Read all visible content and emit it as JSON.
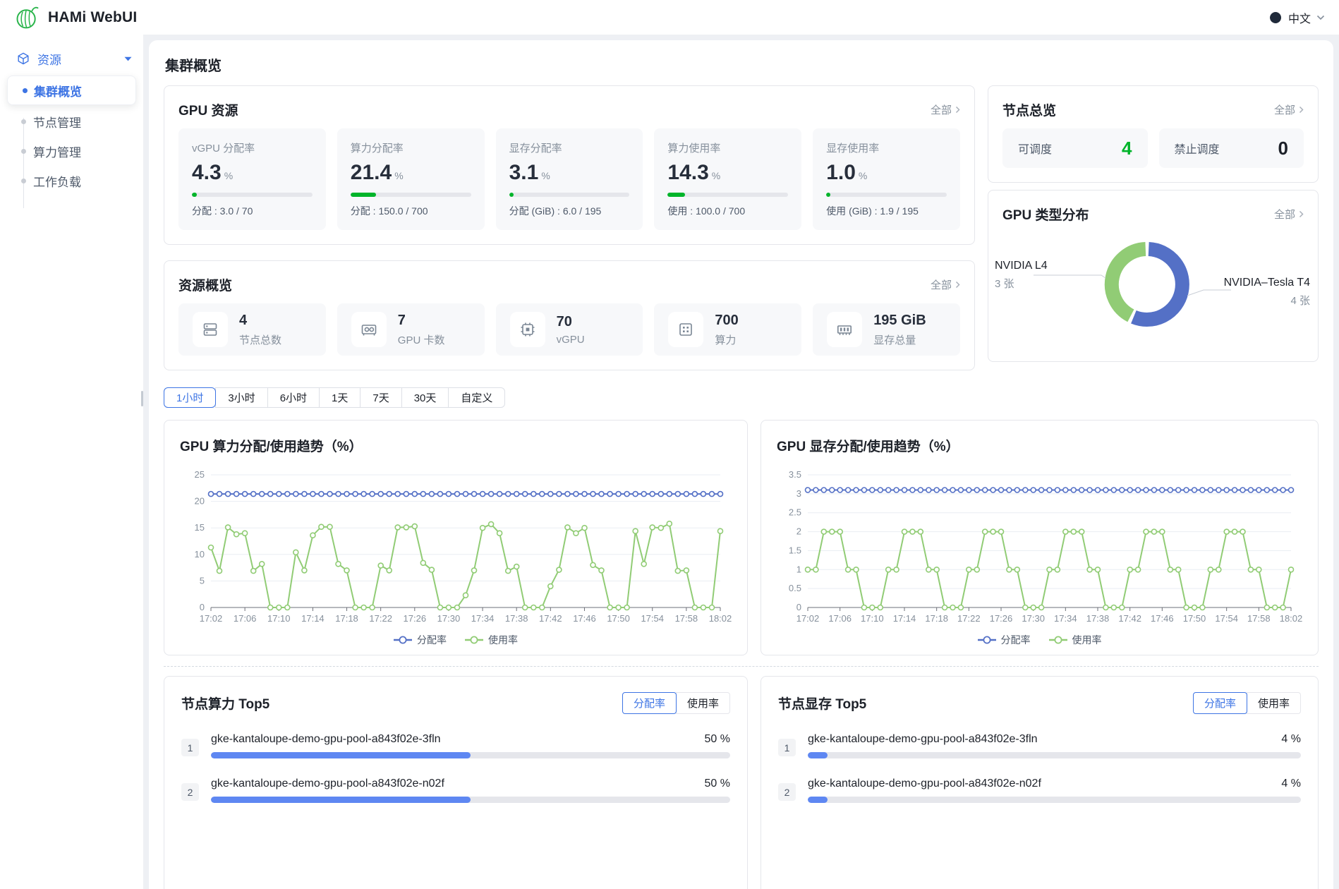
{
  "header": {
    "app_title": "HAMi WebUI",
    "language": "中文"
  },
  "sidebar": {
    "section_label": "资源",
    "items": [
      {
        "label": "集群概览",
        "active": true
      },
      {
        "label": "节点管理",
        "active": false
      },
      {
        "label": "算力管理",
        "active": false
      },
      {
        "label": "工作负载",
        "active": false
      }
    ]
  },
  "page": {
    "title": "集群概览"
  },
  "gpu_resources": {
    "title": "GPU 资源",
    "view_all": "全部",
    "metrics": [
      {
        "label": "vGPU 分配率",
        "value": "4.3",
        "unit": "%",
        "percent": 4.3,
        "caption": "分配 : 3.0 / 70"
      },
      {
        "label": "算力分配率",
        "value": "21.4",
        "unit": "%",
        "percent": 21.4,
        "caption": "分配 : 150.0 / 700"
      },
      {
        "label": "显存分配率",
        "value": "3.1",
        "unit": "%",
        "percent": 3.1,
        "caption": "分配 (GiB) : 6.0 / 195"
      },
      {
        "label": "算力使用率",
        "value": "14.3",
        "unit": "%",
        "percent": 14.3,
        "caption": "使用 : 100.0 / 700"
      },
      {
        "label": "显存使用率",
        "value": "1.0",
        "unit": "%",
        "percent": 1.0,
        "caption": "使用 (GiB) : 1.9 / 195"
      }
    ]
  },
  "node_overview": {
    "title": "节点总览",
    "view_all": "全部",
    "stats": [
      {
        "label": "可调度",
        "value": "4",
        "status": "green"
      },
      {
        "label": "禁止调度",
        "value": "0",
        "status": "dark"
      }
    ]
  },
  "gpu_type_distribution": {
    "title": "GPU 类型分布",
    "view_all": "全部"
  },
  "resource_overview": {
    "title": "资源概览",
    "view_all": "全部",
    "items": [
      {
        "value": "4",
        "label": "节点总数"
      },
      {
        "value": "7",
        "label": "GPU 卡数"
      },
      {
        "value": "70",
        "label": "vGPU"
      },
      {
        "value": "700",
        "label": "算力"
      },
      {
        "value": "195 GiB",
        "label": "显存总量"
      }
    ]
  },
  "time_range": {
    "options": [
      "1小时",
      "3小时",
      "6小时",
      "1天",
      "7天",
      "30天",
      "自定义"
    ],
    "active": "1小时"
  },
  "top5": {
    "compute": {
      "title": "节点算力 Top5",
      "toggle": [
        "分配率",
        "使用率"
      ],
      "active_toggle": "分配率",
      "rows": [
        {
          "rank": "1",
          "name": "gke-kantaloupe-demo-gpu-pool-a843f02e-3fln",
          "value": "50 %",
          "percent": 50
        },
        {
          "rank": "2",
          "name": "gke-kantaloupe-demo-gpu-pool-a843f02e-n02f",
          "value": "50 %",
          "percent": 50
        }
      ]
    },
    "memory": {
      "title": "节点显存 Top5",
      "toggle": [
        "分配率",
        "使用率"
      ],
      "active_toggle": "分配率",
      "rows": [
        {
          "rank": "1",
          "name": "gke-kantaloupe-demo-gpu-pool-a843f02e-3fln",
          "value": "4 %",
          "percent": 4
        },
        {
          "rank": "2",
          "name": "gke-kantaloupe-demo-gpu-pool-a843f02e-n02f",
          "value": "4 %",
          "percent": 4
        }
      ]
    }
  },
  "colors": {
    "primary_blue": "#3d74e4",
    "success_green": "#00b42a",
    "line_blue": "#5470c6",
    "line_green": "#91cc75",
    "top5_bar_blue": "#5e87f2"
  },
  "chart_data": [
    {
      "type": "pie",
      "title": "GPU 类型分布",
      "slices": [
        {
          "name": "NVIDIA–Tesla T4",
          "value": 4,
          "count_label": "4 张",
          "color": "#5470c6"
        },
        {
          "name": "NVIDIA L4",
          "value": 3,
          "count_label": "3 张",
          "color": "#91cc75"
        }
      ],
      "unit": "张",
      "donut": true
    },
    {
      "type": "line",
      "title": "GPU 算力分配/使用趋势（%）",
      "ylim": [
        0,
        25
      ],
      "yticks": [
        0,
        5,
        10,
        15,
        20,
        25
      ],
      "tick_every": 4,
      "legend_position": "bottom",
      "x": [
        "17:02",
        "17:03",
        "17:04",
        "17:05",
        "17:06",
        "17:07",
        "17:08",
        "17:09",
        "17:10",
        "17:11",
        "17:12",
        "17:13",
        "17:14",
        "17:15",
        "17:16",
        "17:17",
        "17:18",
        "17:19",
        "17:20",
        "17:21",
        "17:22",
        "17:23",
        "17:24",
        "17:25",
        "17:26",
        "17:27",
        "17:28",
        "17:29",
        "17:30",
        "17:31",
        "17:32",
        "17:33",
        "17:34",
        "17:35",
        "17:36",
        "17:37",
        "17:38",
        "17:39",
        "17:40",
        "17:41",
        "17:42",
        "17:43",
        "17:44",
        "17:45",
        "17:46",
        "17:47",
        "17:48",
        "17:49",
        "17:50",
        "17:51",
        "17:52",
        "17:53",
        "17:54",
        "17:55",
        "17:56",
        "17:57",
        "17:58",
        "17:59",
        "18:00",
        "18:01",
        "18:02"
      ],
      "series": [
        {
          "name": "分配率",
          "color": "#5470c6",
          "values": [
            21.4,
            21.4,
            21.4,
            21.4,
            21.4,
            21.4,
            21.4,
            21.4,
            21.4,
            21.4,
            21.4,
            21.4,
            21.4,
            21.4,
            21.4,
            21.4,
            21.4,
            21.4,
            21.4,
            21.4,
            21.4,
            21.4,
            21.4,
            21.4,
            21.4,
            21.4,
            21.4,
            21.4,
            21.4,
            21.4,
            21.4,
            21.4,
            21.4,
            21.4,
            21.4,
            21.4,
            21.4,
            21.4,
            21.4,
            21.4,
            21.4,
            21.4,
            21.4,
            21.4,
            21.4,
            21.4,
            21.4,
            21.4,
            21.4,
            21.4,
            21.4,
            21.4,
            21.4,
            21.4,
            21.4,
            21.4,
            21.4,
            21.4,
            21.4,
            21.4,
            21.4
          ]
        },
        {
          "name": "使用率",
          "color": "#91cc75",
          "values": [
            11.3,
            6.9,
            15.1,
            13.8,
            14,
            6.9,
            8.2,
            0,
            0,
            0,
            10.4,
            7,
            13.6,
            15.2,
            15.2,
            8.2,
            7,
            0,
            0,
            0,
            7.9,
            7,
            15.1,
            15.1,
            15.3,
            8.4,
            7.1,
            0,
            0,
            0,
            2.3,
            7,
            15,
            15.7,
            14,
            6.9,
            7.7,
            0,
            0,
            0,
            4,
            7.1,
            15.1,
            14,
            15,
            8,
            7,
            0,
            0,
            0,
            14.4,
            8.2,
            15.1,
            15,
            15.8,
            6.9,
            7,
            0,
            0,
            0,
            14.4
          ]
        }
      ]
    },
    {
      "type": "line",
      "title": "GPU 显存分配/使用趋势（%）",
      "ylim": [
        0,
        3.5
      ],
      "yticks": [
        0,
        0.5,
        1,
        1.5,
        2,
        2.5,
        3,
        3.5
      ],
      "tick_every": 4,
      "legend_position": "bottom",
      "x": [
        "17:02",
        "17:03",
        "17:04",
        "17:05",
        "17:06",
        "17:07",
        "17:08",
        "17:09",
        "17:10",
        "17:11",
        "17:12",
        "17:13",
        "17:14",
        "17:15",
        "17:16",
        "17:17",
        "17:18",
        "17:19",
        "17:20",
        "17:21",
        "17:22",
        "17:23",
        "17:24",
        "17:25",
        "17:26",
        "17:27",
        "17:28",
        "17:29",
        "17:30",
        "17:31",
        "17:32",
        "17:33",
        "17:34",
        "17:35",
        "17:36",
        "17:37",
        "17:38",
        "17:39",
        "17:40",
        "17:41",
        "17:42",
        "17:43",
        "17:44",
        "17:45",
        "17:46",
        "17:47",
        "17:48",
        "17:49",
        "17:50",
        "17:51",
        "17:52",
        "17:53",
        "17:54",
        "17:55",
        "17:56",
        "17:57",
        "17:58",
        "17:59",
        "18:00",
        "18:01",
        "18:02"
      ],
      "series": [
        {
          "name": "分配率",
          "color": "#5470c6",
          "values": [
            3.1,
            3.1,
            3.1,
            3.1,
            3.1,
            3.1,
            3.1,
            3.1,
            3.1,
            3.1,
            3.1,
            3.1,
            3.1,
            3.1,
            3.1,
            3.1,
            3.1,
            3.1,
            3.1,
            3.1,
            3.1,
            3.1,
            3.1,
            3.1,
            3.1,
            3.1,
            3.1,
            3.1,
            3.1,
            3.1,
            3.1,
            3.1,
            3.1,
            3.1,
            3.1,
            3.1,
            3.1,
            3.1,
            3.1,
            3.1,
            3.1,
            3.1,
            3.1,
            3.1,
            3.1,
            3.1,
            3.1,
            3.1,
            3.1,
            3.1,
            3.1,
            3.1,
            3.1,
            3.1,
            3.1,
            3.1,
            3.1,
            3.1,
            3.1,
            3.1,
            3.1
          ]
        },
        {
          "name": "使用率",
          "color": "#91cc75",
          "values": [
            1,
            1,
            2,
            2,
            2,
            1,
            1,
            0,
            0,
            0,
            1,
            1,
            2,
            2,
            2,
            1,
            1,
            0,
            0,
            0,
            1,
            1,
            2,
            2,
            2,
            1,
            1,
            0,
            0,
            0,
            1,
            1,
            2,
            2,
            2,
            1,
            1,
            0,
            0,
            0,
            1,
            1,
            2,
            2,
            2,
            1,
            1,
            0,
            0,
            0,
            1,
            1,
            2,
            2,
            2,
            1,
            1,
            0,
            0,
            0,
            1
          ]
        }
      ]
    }
  ]
}
